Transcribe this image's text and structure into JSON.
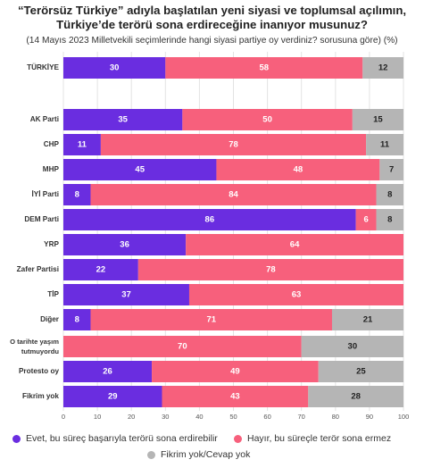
{
  "title_line1": "“Terörsüz Türkiye” adıyla başlatılan yeni siyasi ve toplumsal açılımın,",
  "title_line2": "Türkiye’de terörü sona erdireceğine inanıyor musunuz?",
  "subtitle": "(14 Mayıs 2023 Milletvekili seçimlerinde hangi siyasi partiye oy verdiniz? sorusuna göre) (%)",
  "legend": [
    {
      "label": "Evet, bu süreç başarıyla terörü sona erdirebilir",
      "color": "#6a2de0"
    },
    {
      "label": "Hayır, bu süreçle terör sona ermez",
      "color": "#f7607c"
    },
    {
      "label": "Fikrim yok/Cevap yok",
      "color": "#b5b5b5"
    }
  ],
  "chart_data": {
    "type": "bar",
    "orientation": "horizontal",
    "stacked": true,
    "categories": [
      "TÜRKİYE",
      "AK Parti",
      "CHP",
      "MHP",
      "İYİ Parti",
      "DEM Parti",
      "YRP",
      "Zafer Partisi",
      "TİP",
      "Diğer",
      "O tarihte yaşım|tutmuyordu",
      "Protesto oy",
      "Fikrim yok"
    ],
    "series": [
      {
        "name": "Evet, bu süreç başarıyla terörü sona erdirebilir",
        "color": "#6a2de0",
        "values": [
          30,
          35,
          11,
          45,
          8,
          86,
          36,
          22,
          37,
          8,
          0,
          26,
          29
        ]
      },
      {
        "name": "Hayır, bu süreçle terör sona ermez",
        "color": "#f7607c",
        "values": [
          58,
          50,
          78,
          48,
          84,
          6,
          64,
          78,
          63,
          71,
          70,
          49,
          43
        ]
      },
      {
        "name": "Fikrim yok/Cevap yok",
        "color": "#b5b5b5",
        "values": [
          12,
          15,
          11,
          7,
          8,
          8,
          0,
          0,
          0,
          21,
          30,
          25,
          28
        ]
      }
    ],
    "xlim": [
      0,
      100
    ],
    "xticks": [
      0,
      10,
      20,
      30,
      40,
      50,
      60,
      70,
      80,
      90,
      100
    ],
    "grid": true,
    "legend_position": "bottom"
  }
}
